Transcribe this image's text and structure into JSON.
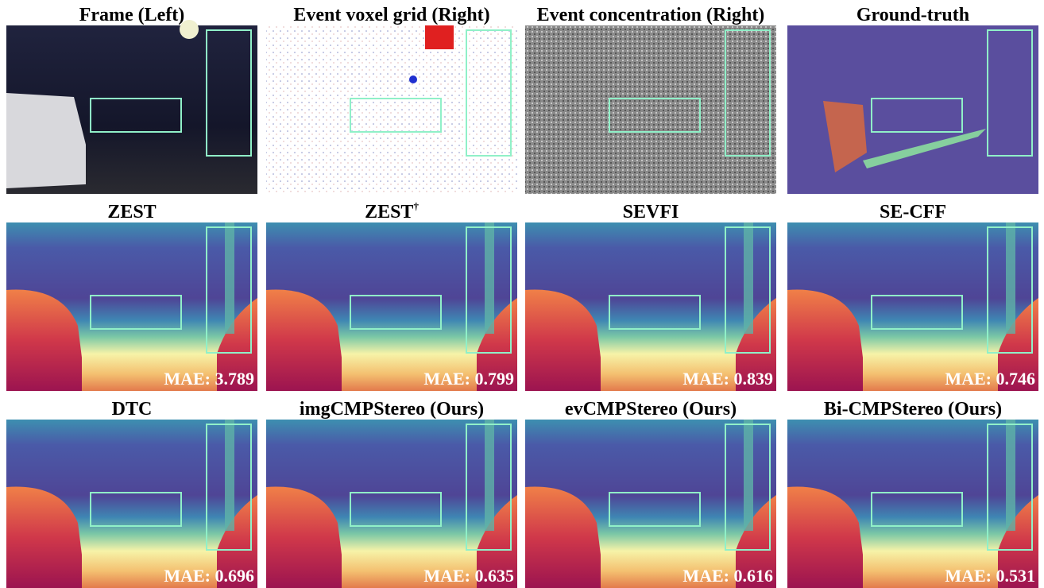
{
  "panels": [
    {
      "title": "Frame (Left)"
    },
    {
      "title": "Event voxel grid (Right)"
    },
    {
      "title": "Event concentration (Right)"
    },
    {
      "title": "Ground-truth"
    },
    {
      "title": "ZEST",
      "mae": "MAE: 3.789"
    },
    {
      "title": "ZEST",
      "title_superscript": "†",
      "mae": "MAE: 0.799"
    },
    {
      "title": "SEVFI",
      "mae": "MAE: 0.839"
    },
    {
      "title": "SE-CFF",
      "mae": "MAE: 0.746"
    },
    {
      "title": "DTC",
      "mae": "MAE: 0.696"
    },
    {
      "title": "imgCMPStereo (Ours)",
      "mae": "MAE: 0.635"
    },
    {
      "title": "evCMPStereo (Ours)",
      "mae": "MAE: 0.616"
    },
    {
      "title": "Bi-CMPStereo (Ours)",
      "mae": "MAE: 0.531"
    }
  ]
}
